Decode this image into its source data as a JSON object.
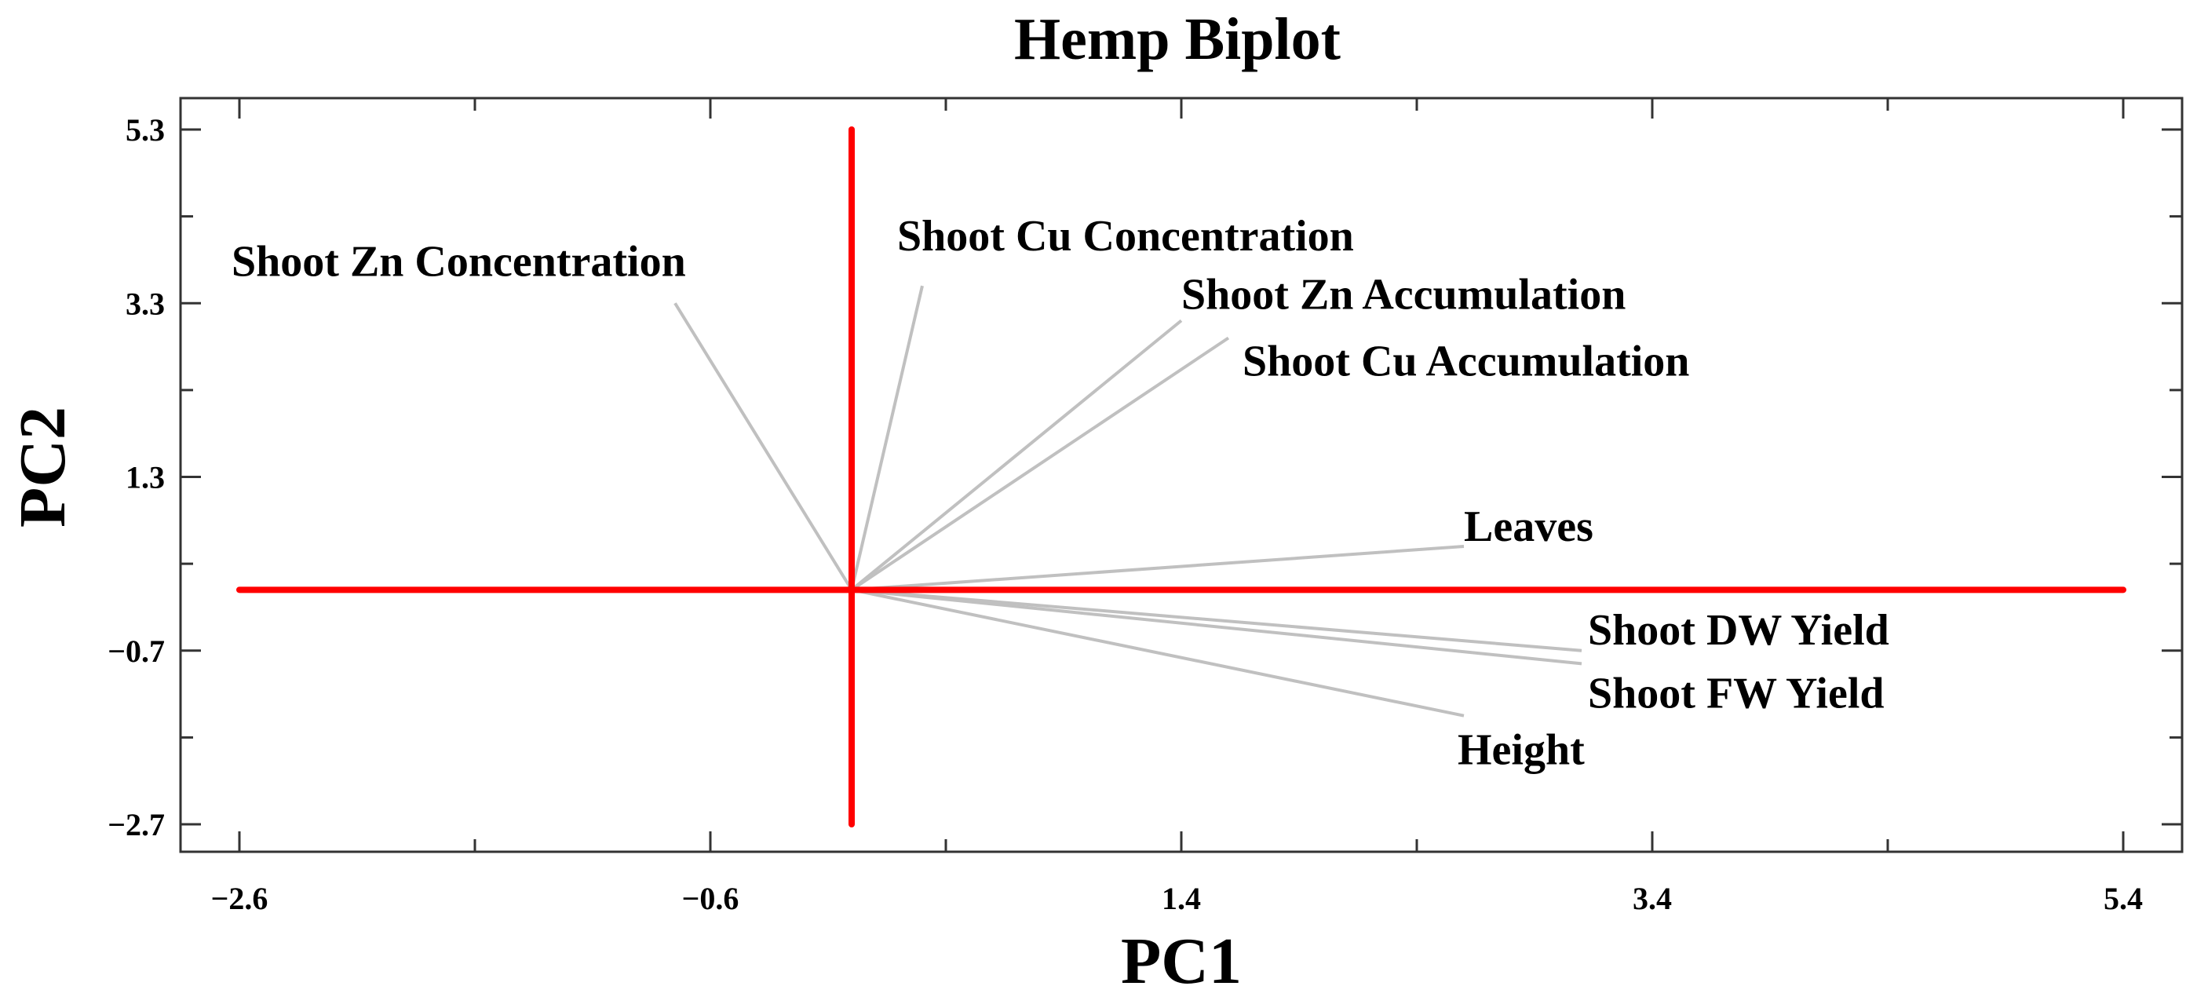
{
  "chart_data": {
    "type": "biplot",
    "title": "Hemp Biplot",
    "xlabel": "PC1",
    "ylabel": "PC2",
    "xlim": [
      -2.6,
      5.4
    ],
    "ylim": [
      -2.7,
      5.3
    ],
    "xticks": [
      -2.6,
      -0.6,
      1.4,
      3.4,
      5.4
    ],
    "xtick_labels": [
      "-2.6",
      "-0.6",
      "1.4",
      "3.4",
      "5.4"
    ],
    "yticks": [
      -2.7,
      -0.7,
      1.3,
      3.3,
      5.3
    ],
    "ytick_labels": [
      "-2.7",
      "-0.7",
      "1.3",
      "3.3",
      "5.3"
    ],
    "grid": false,
    "reference_lines": {
      "x": 0,
      "y": 0,
      "color": "#ff0000"
    },
    "vector_color": "#c0c0c0",
    "vectors": [
      {
        "name": "Shoot Zn Concentration",
        "x": -0.75,
        "y": 3.3
      },
      {
        "name": "Shoot Cu Concentration",
        "x": 0.3,
        "y": 3.5
      },
      {
        "name": "Shoot Zn Accumulation",
        "x": 1.4,
        "y": 3.1
      },
      {
        "name": "Shoot Cu Accumulation",
        "x": 1.6,
        "y": 2.9
      },
      {
        "name": "Leaves",
        "x": 2.6,
        "y": 0.5
      },
      {
        "name": "Shoot DW Yield",
        "x": 3.1,
        "y": -0.7
      },
      {
        "name": "Shoot FW Yield",
        "x": 3.1,
        "y": -0.85
      },
      {
        "name": "Height",
        "x": 2.6,
        "y": -1.45
      }
    ]
  }
}
